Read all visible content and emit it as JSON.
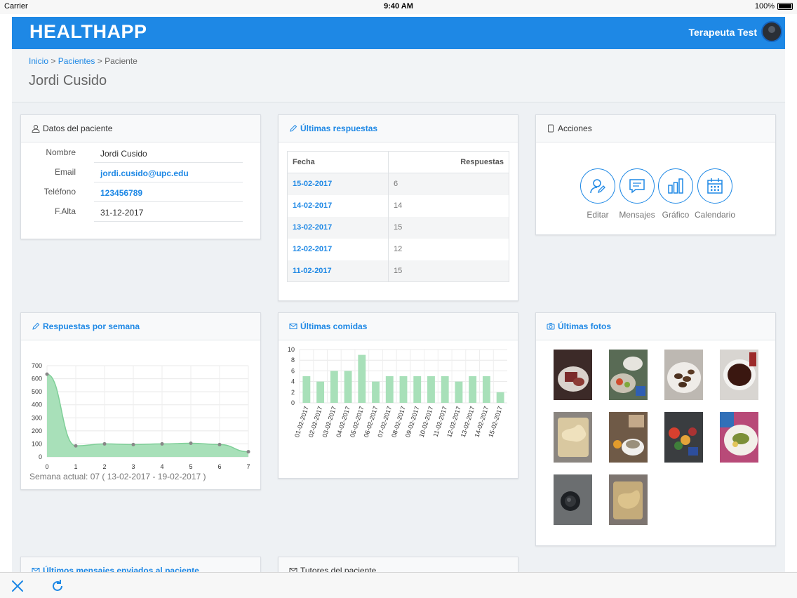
{
  "status": {
    "carrier": "Carrier",
    "time": "9:40 AM",
    "battery": "100%"
  },
  "header": {
    "brand": "HEALTHAPP",
    "user": "Terapeuta Test"
  },
  "breadcrumb": {
    "items": [
      "Inicio",
      "Pacientes",
      "Paciente"
    ],
    "sep": ">"
  },
  "page": {
    "title": "Jordi Cusido"
  },
  "patient": {
    "title": "Datos del paciente",
    "rows": [
      {
        "label": "Nombre",
        "value": "Jordi Cusido"
      },
      {
        "label": "Email",
        "value": "jordi.cusido@upc.edu"
      },
      {
        "label": "Teléfono",
        "value": "123456789"
      },
      {
        "label": "F.Alta",
        "value": "31-12-2017"
      }
    ]
  },
  "responses": {
    "title": "Últimas respuestas",
    "headers": [
      "Fecha",
      "Respuestas"
    ],
    "rows": [
      {
        "date": "15-02-2017",
        "value": "6"
      },
      {
        "date": "14-02-2017",
        "value": "14"
      },
      {
        "date": "13-02-2017",
        "value": "15"
      },
      {
        "date": "12-02-2017",
        "value": "12"
      },
      {
        "date": "11-02-2017",
        "value": "15"
      }
    ]
  },
  "actions": {
    "title": "Acciones",
    "items": [
      {
        "label": "Editar",
        "icon": "user-edit-icon"
      },
      {
        "label": "Mensajes",
        "icon": "message-icon"
      },
      {
        "label": "Gráfico",
        "icon": "bar-chart-icon"
      },
      {
        "label": "Calendario",
        "icon": "calendar-icon"
      }
    ]
  },
  "weekly": {
    "title": "Respuestas por semana",
    "caption": "Semana actual: 07 ( 13-02-2017 - 19-02-2017 )"
  },
  "meals": {
    "title": "Últimas comidas"
  },
  "photos": {
    "title": "Últimas fotos",
    "count": 10
  },
  "messages": {
    "title": "Últimos mensajes enviados al paciente"
  },
  "tutors": {
    "title": "Tutores del paciente"
  },
  "colors": {
    "primary": "#1e88e5",
    "chart_fill": "#a8e0b9",
    "chart_stroke": "#7fcf98"
  },
  "chart_data": [
    {
      "type": "area",
      "x": [
        0,
        1,
        2,
        3,
        4,
        5,
        6,
        7
      ],
      "values": [
        635,
        85,
        100,
        95,
        100,
        105,
        95,
        40
      ],
      "xlim": [
        0,
        7
      ],
      "ylim": [
        0,
        700
      ],
      "yticks": [
        0,
        100,
        200,
        300,
        400,
        500,
        600,
        700
      ],
      "xticks": [
        "0",
        "1",
        "2",
        "3",
        "4",
        "5",
        "6",
        "7"
      ],
      "xlabel": "",
      "ylabel": "",
      "grid": true
    },
    {
      "type": "bar",
      "categories": [
        "01-02-2017",
        "02-02-2017",
        "03-02-2017",
        "04-02-2017",
        "05-02-2017",
        "06-02-2017",
        "07-02-2017",
        "08-02-2017",
        "09-02-2017",
        "10-02-2017",
        "11-02-2017",
        "12-02-2017",
        "13-02-2017",
        "14-02-2017",
        "15-02-2017"
      ],
      "values": [
        5,
        4,
        6,
        6,
        9,
        4,
        5,
        5,
        5,
        5,
        5,
        4,
        5,
        5,
        2
      ],
      "ylim": [
        0,
        10
      ],
      "yticks": [
        0,
        2,
        4,
        6,
        8,
        10
      ],
      "xlabel": "",
      "ylabel": "",
      "grid": true
    }
  ]
}
